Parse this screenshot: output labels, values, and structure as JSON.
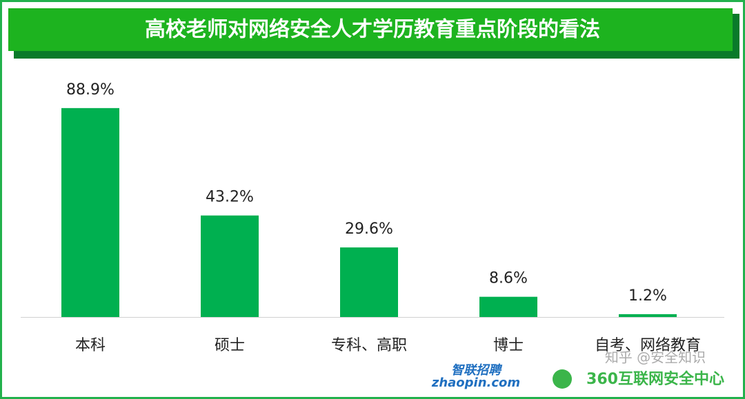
{
  "chart_data": {
    "type": "bar",
    "title": "高校老师对网络安全人才学历教育重点阶段的看法",
    "categories": [
      "本科",
      "硕士",
      "专科、高职",
      "博士",
      "自考、网络教育"
    ],
    "values": [
      88.9,
      43.2,
      29.6,
      8.6,
      1.2
    ],
    "value_labels": [
      "88.9%",
      "43.2%",
      "29.6%",
      "8.6%",
      "1.2%"
    ],
    "color": "#00b050"
  },
  "logos": [
    "智联招聘",
    "zhaopin.com",
    "360互联网安全中心"
  ],
  "watermark": "知乎 @安全知识"
}
